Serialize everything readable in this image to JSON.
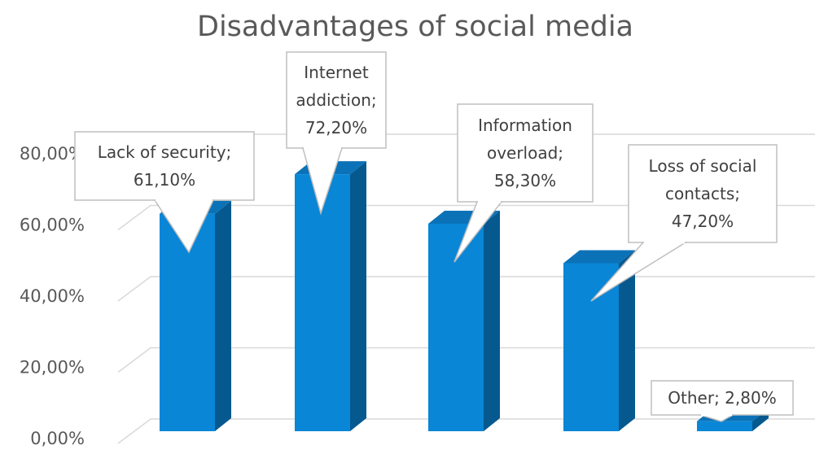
{
  "chart_data": {
    "type": "bar",
    "title": "Disadvantages of social media",
    "xlabel": "",
    "ylabel": "",
    "categories": [
      "Lack of security",
      "Internet addiction",
      "Information overload",
      "Loss of social contacts",
      "Other"
    ],
    "values": [
      61.1,
      72.2,
      58.3,
      47.2,
      2.8
    ],
    "ylim": [
      0,
      80
    ],
    "yticks": [
      "0,00%",
      "20,00%",
      "40,00%",
      "60,00%",
      "80,00%"
    ],
    "data_labels": [
      [
        "Lack of security;",
        "61,10%"
      ],
      [
        "Internet",
        "addiction;",
        "72,20%"
      ],
      [
        "Information",
        "overload;",
        "58,30%"
      ],
      [
        "Loss of social",
        "contacts;",
        "47,20%"
      ],
      [
        "Other; 2,80%"
      ]
    ],
    "grid": true,
    "legend": "none",
    "colors": {
      "bar_front": "#0a86d6",
      "bar_side": "#06598f",
      "bar_top": "#0b72b8",
      "grid": "#d9d9d9",
      "text": "#595959"
    }
  }
}
